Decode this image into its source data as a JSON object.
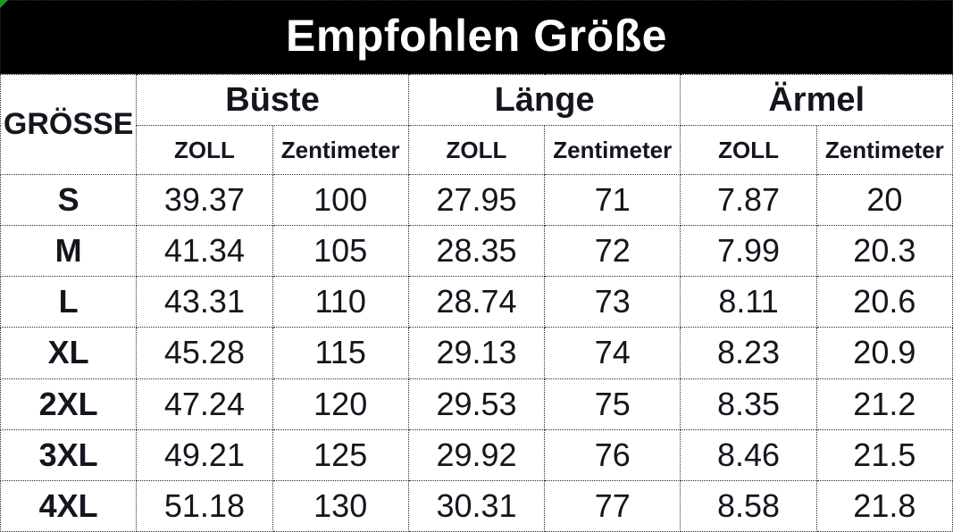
{
  "banner": {
    "title": "Empfohlen Größe"
  },
  "table": {
    "size_header": "GRÖSSE",
    "groups": [
      {
        "label": "Büste"
      },
      {
        "label": "Länge"
      },
      {
        "label": "Ärmel"
      }
    ],
    "unit_headers": [
      "ZOLL",
      "Zentimeter",
      "ZOLL",
      "Zentimeter",
      "ZOLL",
      "Zentimeter"
    ],
    "rows": [
      {
        "size": "S",
        "values": [
          "39.37",
          "100",
          "27.95",
          "71",
          "7.87",
          "20"
        ]
      },
      {
        "size": "M",
        "values": [
          "41.34",
          "105",
          "28.35",
          "72",
          "7.99",
          "20.3"
        ]
      },
      {
        "size": "L",
        "values": [
          "43.31",
          "110",
          "28.74",
          "73",
          "8.11",
          "20.6"
        ]
      },
      {
        "size": "XL",
        "values": [
          "45.28",
          "115",
          "29.13",
          "74",
          "8.23",
          "20.9"
        ]
      },
      {
        "size": "2XL",
        "values": [
          "47.24",
          "120",
          "29.53",
          "75",
          "8.35",
          "21.2"
        ]
      },
      {
        "size": "3XL",
        "values": [
          "49.21",
          "125",
          "29.92",
          "76",
          "8.46",
          "21.5"
        ]
      },
      {
        "size": "4XL",
        "values": [
          "51.18",
          "130",
          "30.31",
          "77",
          "8.58",
          "21.8"
        ]
      }
    ]
  },
  "colors": {
    "banner_bg": "#000000",
    "banner_text": "#ffffff",
    "table_text": "#141414",
    "border": "#2b2b2b",
    "corner_marker_green": "#1f9a27"
  },
  "chart_data": {
    "type": "table",
    "title": "Empfohlen Größe",
    "column_groups": [
      "Büste",
      "Länge",
      "Ärmel"
    ],
    "columns": [
      "GRÖSSE",
      "Büste ZOLL",
      "Büste Zentimeter",
      "Länge ZOLL",
      "Länge Zentimeter",
      "Ärmel ZOLL",
      "Ärmel Zentimeter"
    ],
    "rows": [
      [
        "S",
        39.37,
        100,
        27.95,
        71,
        7.87,
        20
      ],
      [
        "M",
        41.34,
        105,
        28.35,
        72,
        7.99,
        20.3
      ],
      [
        "L",
        43.31,
        110,
        28.74,
        73,
        8.11,
        20.6
      ],
      [
        "XL",
        45.28,
        115,
        29.13,
        74,
        8.23,
        20.9
      ],
      [
        "2XL",
        47.24,
        120,
        29.53,
        75,
        8.35,
        21.2
      ],
      [
        "3XL",
        49.21,
        125,
        29.92,
        76,
        8.46,
        21.5
      ],
      [
        "4XL",
        51.18,
        130,
        30.31,
        77,
        8.58,
        21.8
      ]
    ]
  }
}
